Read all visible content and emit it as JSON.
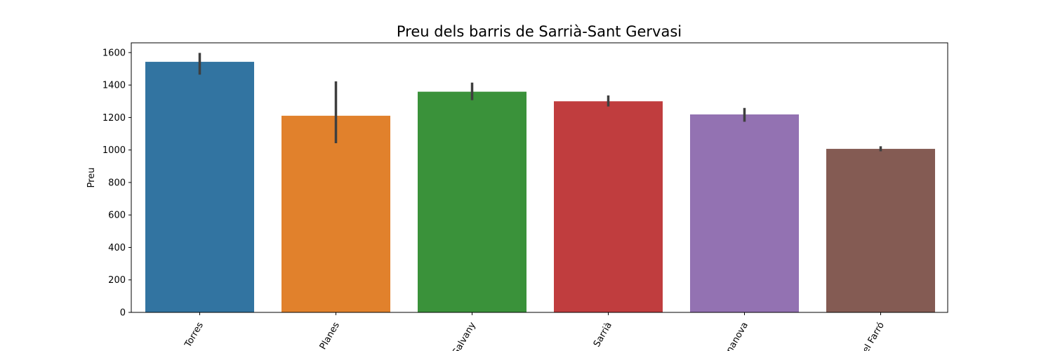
{
  "chart_data": {
    "type": "bar",
    "title": "Preu dels barris de Sarrià-Sant Gervasi",
    "xlabel": "",
    "ylabel": "Preu",
    "ylim": [
      0,
      1660
    ],
    "yticks": [
      0,
      200,
      400,
      600,
      800,
      1000,
      1200,
      1400,
      1600
    ],
    "grid": false,
    "categories": [
      " Torres",
      "Planes",
      "Galvany",
      "Sarrià",
      "nanova",
      "el Farró"
    ],
    "values": [
      1543,
      1211,
      1359,
      1300,
      1219,
      1007
    ],
    "error_low": [
      1464,
      1042,
      1307,
      1268,
      1174,
      992
    ],
    "error_high": [
      1598,
      1423,
      1415,
      1336,
      1259,
      1023
    ],
    "colors": [
      "#3274a1",
      "#e1812c",
      "#3a923a",
      "#c03d3e",
      "#9372b2",
      "#845b53"
    ],
    "error_color": "#3f3f3f"
  }
}
